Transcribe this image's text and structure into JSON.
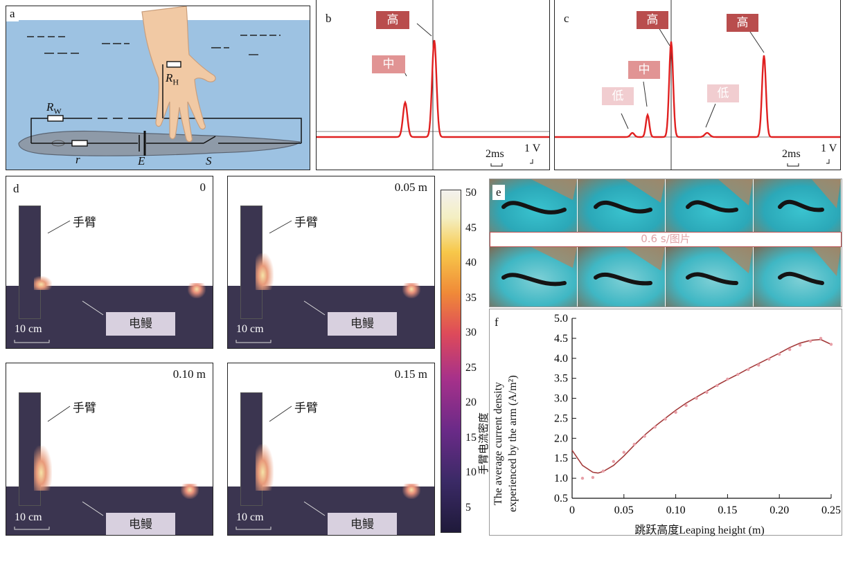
{
  "panels": {
    "a": {
      "label": "a",
      "R_H": "R",
      "R_H_sub": "H",
      "R_W": "R",
      "R_W_sub": "W",
      "r": "r",
      "E": "E",
      "S": "S"
    },
    "b": {
      "label": "b",
      "tag_high": "高",
      "tag_mid": "中",
      "scale_time": "2ms",
      "scale_volt": "1 V"
    },
    "c": {
      "label": "c",
      "tag_high1": "高",
      "tag_high2": "高",
      "tag_mid": "中",
      "tag_low1": "低",
      "tag_low2": "低",
      "scale_time": "2ms",
      "scale_volt": "1 V"
    },
    "d": {
      "label": "d",
      "subplots": [
        {
          "height": "0",
          "arm": "手臂",
          "eel": "电鳗",
          "scale": "10 cm"
        },
        {
          "height": "0.05 m",
          "arm": "手臂",
          "eel": "电鳗",
          "scale": "10 cm"
        },
        {
          "height": "0.10 m",
          "arm": "手臂",
          "eel": "电鳗",
          "scale": "10 cm"
        },
        {
          "height": "0.15 m",
          "arm": "手臂",
          "eel": "电鳗",
          "scale": "10 cm"
        }
      ],
      "colorbar_ticks": [
        "50",
        "45",
        "40",
        "35",
        "30",
        "25",
        "20",
        "15",
        "10",
        "5"
      ]
    },
    "e": {
      "label": "e",
      "caption": "0.6 s/图片"
    },
    "f": {
      "label": "f"
    }
  },
  "chart_data": {
    "type": "scatter",
    "xlabel": "跳跃高度Leaping height (m)",
    "ylabel_cn": "手臂电流密度",
    "ylabel_en1": "The average current density",
    "ylabel_en2": "experienced by the arm (A/m²)",
    "xlim": [
      0,
      0.25
    ],
    "ylim": [
      0.5,
      5.0
    ],
    "x_ticks": [
      "0",
      "0.05",
      "0.10",
      "0.15",
      "0.20",
      "0.25"
    ],
    "y_ticks": [
      "0.5",
      "1.0",
      "1.5",
      "2.0",
      "2.5",
      "3.0",
      "3.5",
      "4.0",
      "4.5",
      "5.0"
    ],
    "points_x": [
      0.01,
      0.02,
      0.03,
      0.04,
      0.05,
      0.06,
      0.07,
      0.08,
      0.09,
      0.1,
      0.11,
      0.12,
      0.13,
      0.14,
      0.15,
      0.16,
      0.17,
      0.18,
      0.19,
      0.2,
      0.21,
      0.22,
      0.23,
      0.24,
      0.25
    ],
    "points_y": [
      1.0,
      1.02,
      1.18,
      1.42,
      1.65,
      1.85,
      2.05,
      2.28,
      2.48,
      2.65,
      2.82,
      3.0,
      3.15,
      3.32,
      3.48,
      3.6,
      3.72,
      3.83,
      3.98,
      4.1,
      4.22,
      4.33,
      4.43,
      4.5,
      4.35
    ],
    "fit_x": [
      0.0,
      0.01,
      0.02,
      0.025,
      0.03,
      0.04,
      0.05,
      0.06,
      0.07,
      0.08,
      0.09,
      0.1,
      0.11,
      0.12,
      0.13,
      0.14,
      0.15,
      0.16,
      0.17,
      0.18,
      0.19,
      0.2,
      0.21,
      0.22,
      0.23,
      0.24,
      0.25
    ],
    "fit_y": [
      1.7,
      1.32,
      1.15,
      1.13,
      1.17,
      1.32,
      1.56,
      1.83,
      2.08,
      2.3,
      2.5,
      2.7,
      2.88,
      3.03,
      3.18,
      3.33,
      3.47,
      3.6,
      3.74,
      3.87,
      4.0,
      4.13,
      4.27,
      4.38,
      4.45,
      4.47,
      4.35
    ],
    "point_color": "#e8a0a8",
    "line_color": "#a33a3a"
  }
}
